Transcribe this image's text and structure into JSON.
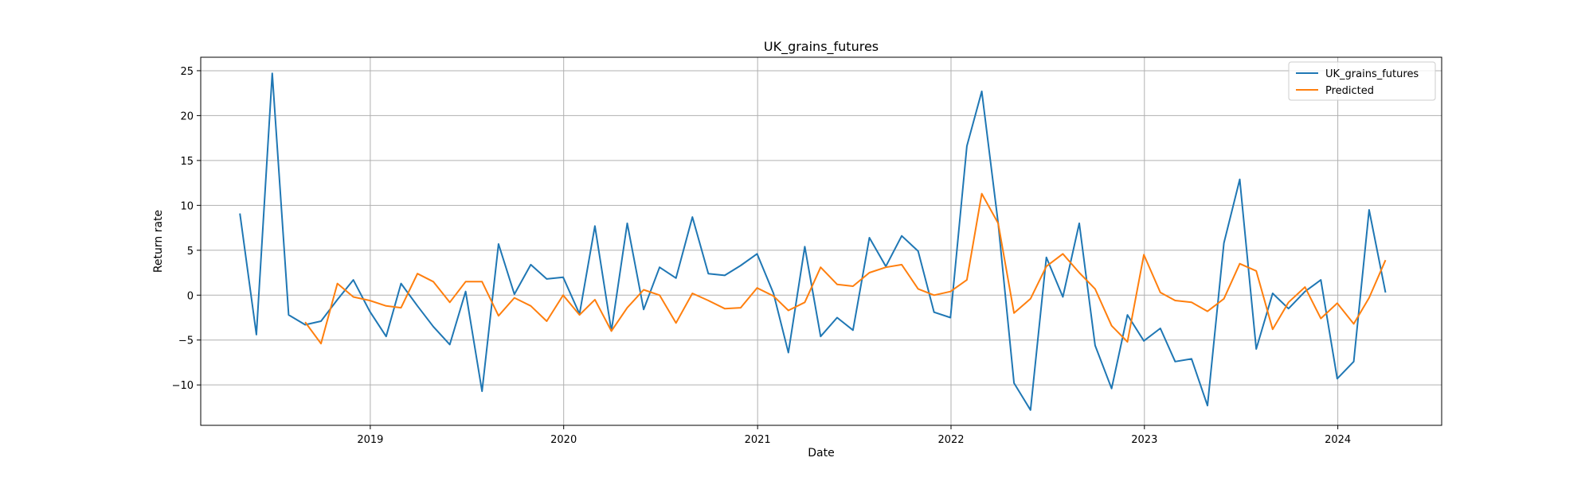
{
  "chart_data": {
    "type": "line",
    "title": "UK_grains_futures",
    "xlabel": "Date",
    "ylabel": "Return rate",
    "xlim": [
      "2018-02-15",
      "2024-07-15"
    ],
    "ylim": [
      -14.5,
      26.5
    ],
    "x_ticks": [
      "2019",
      "2020",
      "2021",
      "2022",
      "2023",
      "2024"
    ],
    "y_ticks": [
      -10,
      -5,
      0,
      5,
      10,
      15,
      20,
      25
    ],
    "grid": true,
    "legend": "top-right",
    "series": [
      {
        "name": "UK_grains_futures",
        "color": "#1f77b4",
        "x": [
          "2018-04-30",
          "2018-05-31",
          "2018-06-30",
          "2018-07-31",
          "2018-08-31",
          "2018-09-30",
          "2018-10-31",
          "2018-11-30",
          "2018-12-31",
          "2019-01-31",
          "2019-02-28",
          "2019-03-31",
          "2019-04-30",
          "2019-05-31",
          "2019-06-30",
          "2019-07-31",
          "2019-08-31",
          "2019-09-30",
          "2019-10-31",
          "2019-11-30",
          "2019-12-31",
          "2020-01-31",
          "2020-02-29",
          "2020-03-31",
          "2020-04-30",
          "2020-05-31",
          "2020-06-30",
          "2020-07-31",
          "2020-08-31",
          "2020-09-30",
          "2020-10-31",
          "2020-11-30",
          "2020-12-31",
          "2021-01-31",
          "2021-02-28",
          "2021-03-31",
          "2021-04-30",
          "2021-05-31",
          "2021-06-30",
          "2021-07-31",
          "2021-08-31",
          "2021-09-30",
          "2021-10-31",
          "2021-11-30",
          "2021-12-31",
          "2022-01-31",
          "2022-02-28",
          "2022-03-31",
          "2022-04-30",
          "2022-05-31",
          "2022-06-30",
          "2022-07-31",
          "2022-08-31",
          "2022-09-30",
          "2022-10-31",
          "2022-11-30",
          "2022-12-31",
          "2023-01-31",
          "2023-02-28",
          "2023-03-31",
          "2023-04-30",
          "2023-05-31",
          "2023-06-30",
          "2023-07-31",
          "2023-08-31",
          "2023-09-30",
          "2023-10-31",
          "2023-11-30",
          "2023-12-31",
          "2024-01-31",
          "2024-02-29",
          "2024-03-31"
        ],
        "values": [
          9.1,
          -4.4,
          24.7,
          -2.2,
          -3.3,
          -2.9,
          -0.5,
          1.7,
          -1.8,
          -4.6,
          1.3,
          -1.2,
          -3.5,
          -5.5,
          0.4,
          -10.7,
          5.7,
          0.1,
          3.4,
          1.8,
          2.0,
          -2.1,
          7.7,
          -4.0,
          8.0,
          -1.6,
          3.1,
          1.9,
          8.7,
          2.4,
          2.2,
          3.3,
          4.6,
          0.2,
          -6.4,
          5.4,
          -4.6,
          -2.5,
          -3.9,
          6.4,
          3.2,
          6.6,
          4.9,
          -1.9,
          -2.5,
          16.6,
          22.7,
          8.0,
          -9.8,
          -12.8,
          4.2,
          -0.2,
          8.0,
          -5.6,
          -10.4,
          -2.2,
          -5.1,
          -3.7,
          -7.4,
          -7.1,
          -12.3,
          5.8,
          12.9,
          -6.0,
          0.2,
          -1.5,
          0.4,
          1.7,
          -9.3,
          -7.4,
          9.5,
          0.3
        ]
      },
      {
        "name": "Predicted",
        "color": "#ff7f0e",
        "x": [
          "2018-08-31",
          "2018-09-30",
          "2018-10-31",
          "2018-11-30",
          "2018-12-31",
          "2019-01-31",
          "2019-02-28",
          "2019-03-31",
          "2019-04-30",
          "2019-05-31",
          "2019-06-30",
          "2019-07-31",
          "2019-08-31",
          "2019-09-30",
          "2019-10-31",
          "2019-11-30",
          "2019-12-31",
          "2020-01-31",
          "2020-02-29",
          "2020-03-31",
          "2020-04-30",
          "2020-05-31",
          "2020-06-30",
          "2020-07-31",
          "2020-08-31",
          "2020-09-30",
          "2020-10-31",
          "2020-11-30",
          "2020-12-31",
          "2021-01-31",
          "2021-02-28",
          "2021-03-31",
          "2021-04-30",
          "2021-05-31",
          "2021-06-30",
          "2021-07-31",
          "2021-08-31",
          "2021-09-30",
          "2021-10-31",
          "2021-11-30",
          "2021-12-31",
          "2022-01-31",
          "2022-02-28",
          "2022-03-31",
          "2022-04-30",
          "2022-05-31",
          "2022-06-30",
          "2022-07-31",
          "2022-08-31",
          "2022-09-30",
          "2022-10-31",
          "2022-11-30",
          "2022-12-31",
          "2023-01-31",
          "2023-02-28",
          "2023-03-31",
          "2023-04-30",
          "2023-05-31",
          "2023-06-30",
          "2023-07-31",
          "2023-08-31",
          "2023-09-30",
          "2023-10-31",
          "2023-11-30",
          "2023-12-31",
          "2024-01-31",
          "2024-02-29",
          "2024-03-31"
        ],
        "values": [
          -3.0,
          -5.4,
          1.3,
          -0.2,
          -0.6,
          -1.2,
          -1.4,
          2.4,
          1.5,
          -0.8,
          1.5,
          1.5,
          -2.3,
          -0.3,
          -1.2,
          -2.9,
          0.0,
          -2.2,
          -0.5,
          -4.0,
          -1.4,
          0.6,
          0.0,
          -3.1,
          0.2,
          -0.6,
          -1.5,
          -1.4,
          0.8,
          -0.1,
          -1.7,
          -0.8,
          3.1,
          1.2,
          1.0,
          2.5,
          3.1,
          3.4,
          0.7,
          0.0,
          0.4,
          1.7,
          11.3,
          8.0,
          -2.0,
          -0.4,
          3.2,
          4.6,
          2.5,
          0.7,
          -3.4,
          -5.2,
          4.5,
          0.3,
          -0.6,
          -0.8,
          -1.8,
          -0.4,
          3.5,
          2.7,
          -3.8,
          -0.8,
          0.9,
          -2.6,
          -0.9,
          -3.2,
          -0.3,
          3.9
        ]
      }
    ]
  }
}
